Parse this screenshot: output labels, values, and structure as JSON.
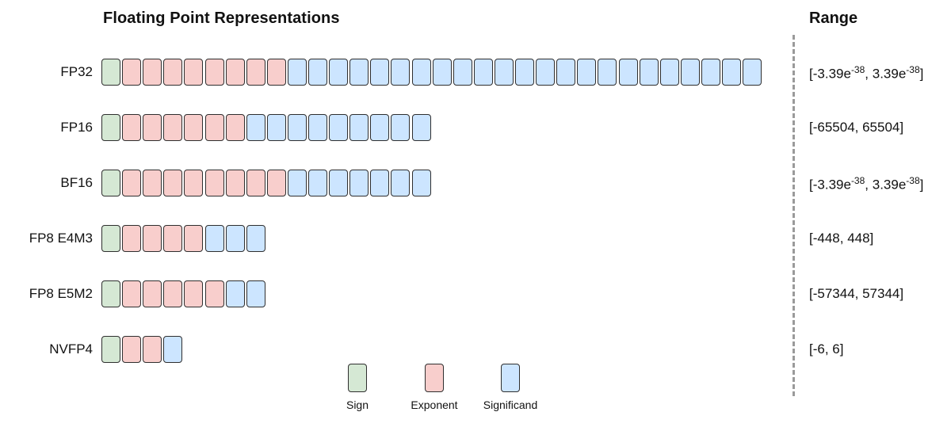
{
  "diagram_title": "Floating Point Representations",
  "range_title": "Range",
  "colors": {
    "sign": "#d5e8d4",
    "exponent": "#f8cecc",
    "significand": "#cce5ff"
  },
  "formats": [
    {
      "name": "FP32",
      "sign_bits": 1,
      "exponent_bits": 8,
      "significand_bits": 23,
      "range": {
        "open": "[",
        "neg_base": "-3.39e",
        "neg_exp": "-38",
        "sep": ", ",
        "pos_base": "3.39e",
        "pos_exp": "-38",
        "close": "]"
      }
    },
    {
      "name": "FP16",
      "sign_bits": 1,
      "exponent_bits": 6,
      "significand_bits": 9,
      "range": {
        "text": "[-65504, 65504]"
      }
    },
    {
      "name": "BF16",
      "sign_bits": 1,
      "exponent_bits": 8,
      "significand_bits": 7,
      "range": {
        "open": "[",
        "neg_base": "-3.39e",
        "neg_exp": "-38",
        "sep": ", ",
        "pos_base": "3.39e",
        "pos_exp": "-38",
        "close": "]"
      }
    },
    {
      "name": "FP8 E4M3",
      "sign_bits": 1,
      "exponent_bits": 4,
      "significand_bits": 3,
      "range": {
        "text": "[-448, 448]"
      }
    },
    {
      "name": "FP8 E5M2",
      "sign_bits": 1,
      "exponent_bits": 5,
      "significand_bits": 2,
      "range": {
        "text": "[-57344, 57344]"
      }
    },
    {
      "name": "NVFP4",
      "sign_bits": 1,
      "exponent_bits": 2,
      "significand_bits": 1,
      "range": {
        "text": "[-6, 6]"
      }
    }
  ],
  "legend": [
    {
      "key": "sign",
      "label": "Sign"
    },
    {
      "key": "exponent",
      "label": "Exponent"
    },
    {
      "key": "significand",
      "label": "Significand"
    }
  ]
}
